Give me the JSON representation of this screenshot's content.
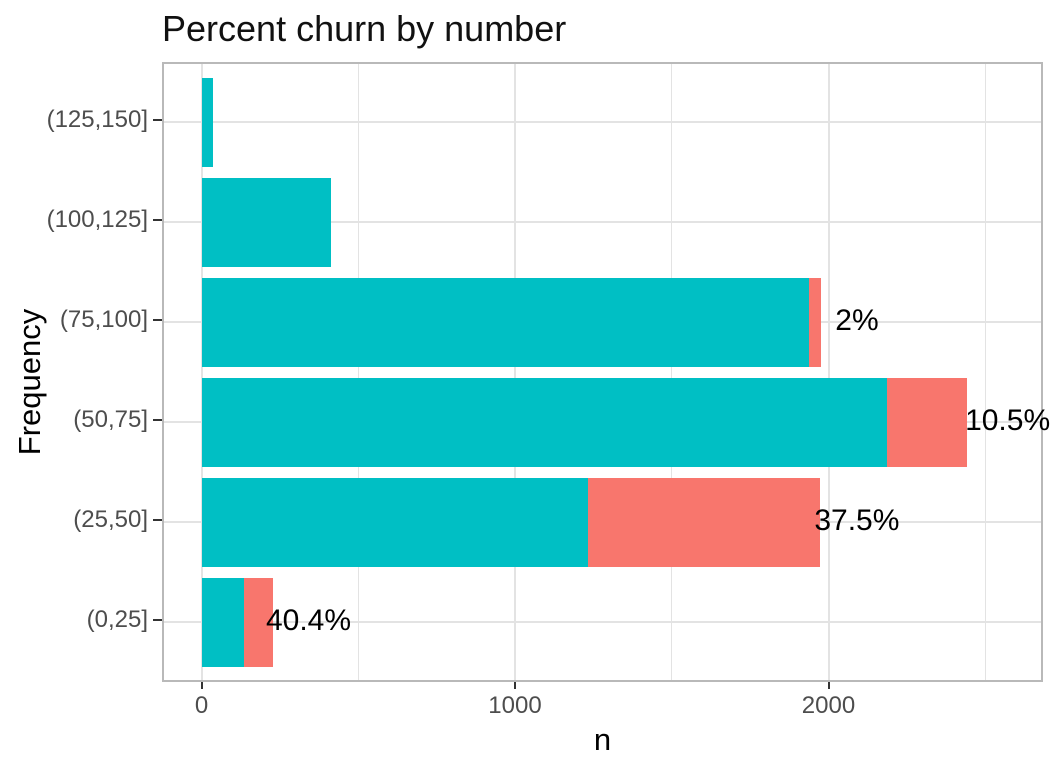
{
  "title": "Percent churn by number",
  "x_axis": {
    "label": "n",
    "tick_labels": [
      "0",
      "1000",
      "2000"
    ]
  },
  "y_axis": {
    "label": "Frequency"
  },
  "colors": {
    "no_churn": "#00BFC4",
    "churn": "#F8766D",
    "gridline": "#e3e3e3",
    "panel_border": "#b9b9b9",
    "tick": "#333333",
    "axis_text": "#4d4d4d",
    "label_text": "#000000"
  },
  "chart_data": {
    "type": "bar",
    "orientation": "horizontal",
    "stacked": true,
    "title": "Percent churn by number",
    "xlabel": "n",
    "ylabel": "Frequency",
    "xlim": [
      0,
      2686
    ],
    "x_major_ticks": [
      0,
      1000,
      2000
    ],
    "x_minor_ticks": [
      500,
      1500,
      2500
    ],
    "grid": true,
    "legend": "none",
    "categories": [
      "(0,25]",
      "(25,50]",
      "(50,75]",
      "(75,100]",
      "(100,125]",
      "(125,150]"
    ],
    "series": [
      {
        "name": "no_churn",
        "color": "#00BFC4",
        "values": [
          136,
          1234,
          2186,
          1937,
          414,
          37
        ]
      },
      {
        "name": "churn",
        "color": "#F8766D",
        "values": [
          92,
          740,
          256,
          40,
          0,
          0
        ]
      }
    ],
    "totals": [
      228,
      1974,
      2442,
      1977,
      414,
      37
    ],
    "bar_labels": [
      "40.4%",
      "37.5%",
      "10.5%",
      "2%",
      "",
      ""
    ]
  }
}
